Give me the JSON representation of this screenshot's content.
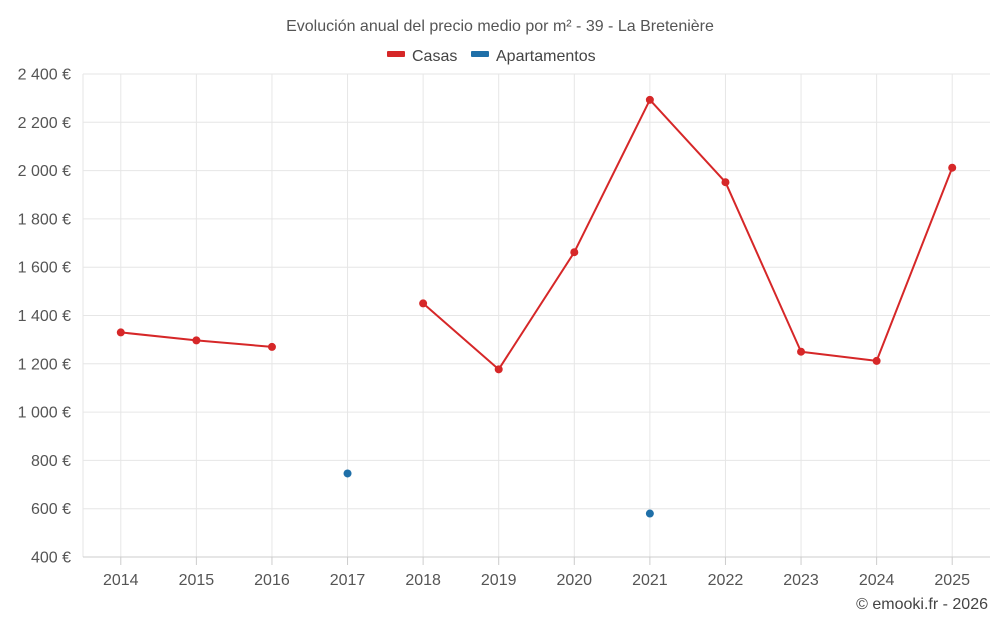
{
  "chart_data": {
    "type": "line",
    "title": "Evolución anual del precio medio por m² - 39 - La Bretenière",
    "categories": [
      "2014",
      "2015",
      "2016",
      "2017",
      "2018",
      "2019",
      "2020",
      "2021",
      "2022",
      "2023",
      "2024",
      "2025"
    ],
    "series": [
      {
        "name": "Casas",
        "color": "#d62728",
        "values": [
          1330,
          1297,
          1270,
          null,
          1450,
          1177,
          1662,
          2293,
          1952,
          1250,
          1212,
          2012
        ]
      },
      {
        "name": "Apartamentos",
        "color": "#1f6fa8",
        "values": [
          null,
          null,
          null,
          746,
          null,
          null,
          null,
          580,
          null,
          null,
          null,
          null
        ]
      }
    ],
    "ylim": [
      400,
      2400
    ],
    "yticks": [
      400,
      600,
      800,
      1000,
      1200,
      1400,
      1600,
      1800,
      2000,
      2200,
      2400
    ],
    "ytick_labels": [
      "400 €",
      "600 €",
      "800 €",
      "1 000 €",
      "1 200 €",
      "1 400 €",
      "1 600 €",
      "1 800 €",
      "2 000 €",
      "2 200 €",
      "2 400 €"
    ],
    "grid": true,
    "legend_position": "top-center",
    "credit": "© emooki.fr - 2026"
  }
}
